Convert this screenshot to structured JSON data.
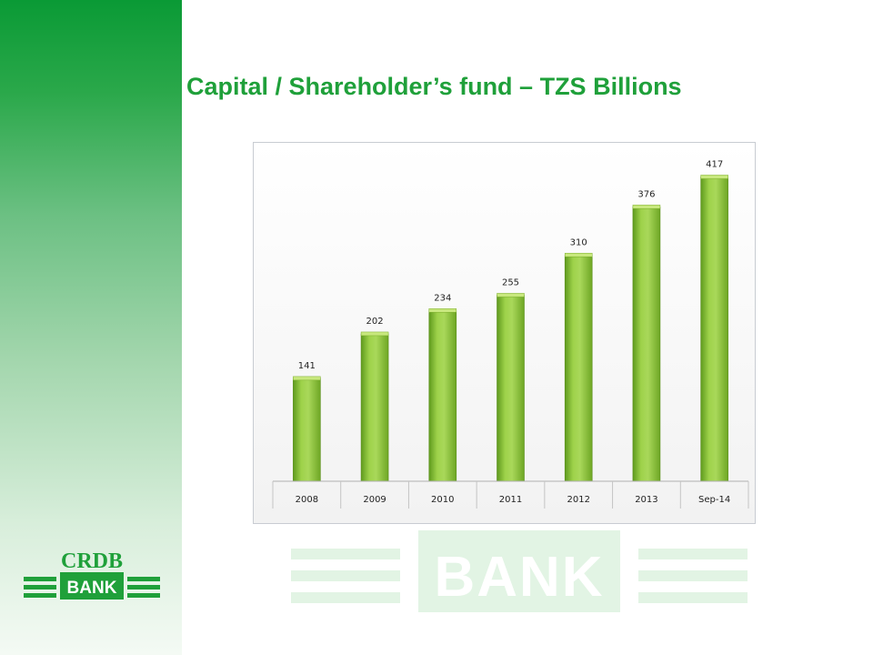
{
  "slide": {
    "title": "Capital / Shareholder’s fund – TZS Billions",
    "accent_color": "#1fa03a",
    "sidebar_color_top": "#0a9a35"
  },
  "logo": {
    "brand_text": "CRDB",
    "bank_text": "BANK",
    "icon": "crdb-bank-logo-icon"
  },
  "watermark": {
    "text": "BANK",
    "color": "#e0f3e2"
  },
  "chart_data": {
    "type": "bar",
    "categories": [
      "2008",
      "2009",
      "2010",
      "2011",
      "2012",
      "2013",
      "Sep-14"
    ],
    "values": [
      141,
      202,
      234,
      255,
      310,
      376,
      417
    ],
    "data_labels": [
      "141",
      "202",
      "234",
      "255",
      "310",
      "376",
      "417"
    ],
    "xlabel": "",
    "ylabel": "",
    "ylim": [
      0,
      440
    ],
    "grid": false,
    "legend": "none",
    "bar_color": "#8cc63f"
  }
}
